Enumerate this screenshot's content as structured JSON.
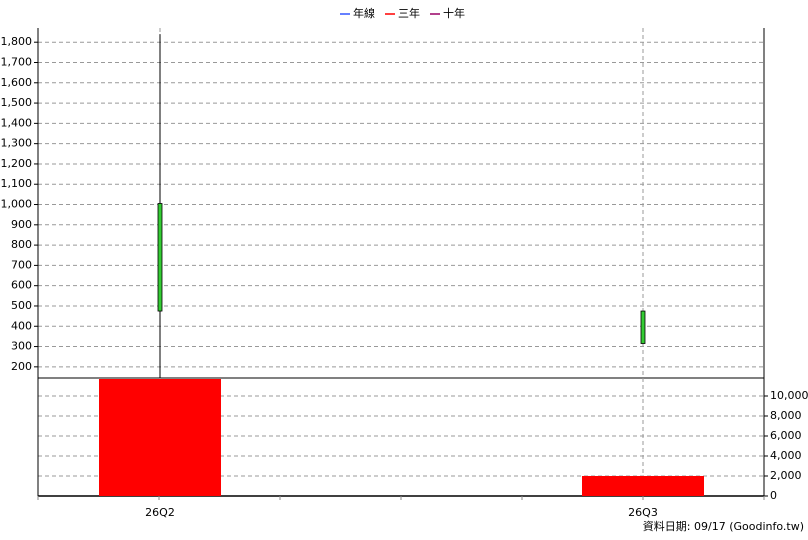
{
  "chart_data": {
    "type": "candlestick",
    "legend": [
      {
        "name": "年線",
        "color": "#3355ff"
      },
      {
        "name": "三年",
        "color": "#ff0000"
      },
      {
        "name": "十年",
        "color": "#990066"
      }
    ],
    "categories": [
      "26Q2",
      "26Q3"
    ],
    "open": [
      1005,
      475
    ],
    "high": [
      1840,
      475
    ],
    "low": [
      145,
      315
    ],
    "close": [
      475,
      315
    ],
    "up_color": "#ff0000",
    "down_color": "#33cc33",
    "ylim": [
      145,
      1870
    ],
    "yticks": [
      200,
      300,
      400,
      500,
      600,
      700,
      800,
      900,
      {
        "value": 1000,
        "label": "1,000"
      },
      {
        "value": 1100,
        "label": "1,100"
      },
      {
        "value": 1200,
        "label": "1,200"
      },
      {
        "value": 1300,
        "label": "1,300"
      },
      {
        "value": 1400,
        "label": "1,400"
      },
      {
        "value": 1500,
        "label": "1,500"
      },
      {
        "value": 1600,
        "label": "1,600"
      },
      {
        "value": 1700,
        "label": "1,700"
      },
      {
        "value": 1800,
        "label": "1,800"
      }
    ],
    "volume": {
      "values": [
        11700,
        2000
      ],
      "color": "#ff0000"
    },
    "y2lim": [
      0,
      11800
    ],
    "y2ticks": [
      0,
      {
        "value": 2000,
        "label": "2,000"
      },
      {
        "value": 4000,
        "label": "4,000"
      },
      {
        "value": 6000,
        "label": "6,000"
      },
      {
        "value": 8000,
        "label": "8,000"
      },
      {
        "value": 10000,
        "label": "10,000"
      }
    ],
    "grid": true,
    "note": "資料日期: 09/17  (Goodinfo.tw)"
  }
}
